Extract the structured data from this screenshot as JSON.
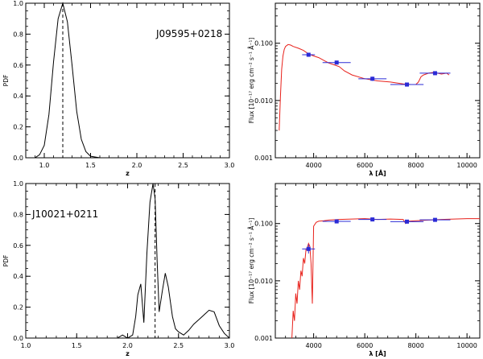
{
  "figure": {
    "panels": [
      {
        "id": "p1",
        "type": "line",
        "label": "J09595+0218",
        "xlabel": "z",
        "ylabel": "PDF",
        "xlim": [
          0.8,
          3.0
        ],
        "ylim": [
          0.0,
          1.0
        ],
        "xticks": [
          1.0,
          1.5,
          2.0,
          2.5,
          3.0
        ],
        "xtick_labels": [
          "1.0",
          "1.5",
          "2.0",
          "2.5",
          "3.0"
        ],
        "yticks": [
          0.0,
          0.2,
          0.4,
          0.6,
          0.8,
          1.0
        ],
        "ytick_labels": [
          "0.0",
          "0.2",
          "0.4",
          "0.6",
          "0.8",
          "1.0"
        ],
        "vline": 1.2,
        "x": [
          0.8,
          0.9,
          0.95,
          1.0,
          1.05,
          1.1,
          1.15,
          1.2,
          1.25,
          1.3,
          1.35,
          1.4,
          1.45,
          1.5,
          1.6,
          1.8,
          2.0,
          3.0
        ],
        "y": [
          0.0,
          0.0,
          0.02,
          0.08,
          0.28,
          0.62,
          0.9,
          1.0,
          0.88,
          0.6,
          0.3,
          0.12,
          0.04,
          0.01,
          0.0,
          0.0,
          0.0,
          0.0
        ]
      },
      {
        "id": "p2",
        "type": "sed",
        "xlabel": "λ [Å]",
        "ylabel": "Flux [10⁻¹⁷ erg cm⁻² s⁻¹ Å⁻¹]",
        "xlim": [
          2500,
          10500
        ],
        "ylim": [
          0.001,
          0.5
        ],
        "yscale": "log",
        "xticks": [
          4000,
          6000,
          8000,
          10000
        ],
        "xtick_labels": [
          "4000",
          "6000",
          "8000",
          "10000"
        ],
        "yticks": [
          0.001,
          0.01,
          0.1
        ],
        "ytick_labels": [
          "0.001",
          "0.010",
          "0.100"
        ],
        "curve_x": [
          2650,
          2700,
          2750,
          2800,
          2850,
          2900,
          3000,
          3100,
          3200,
          3400,
          3600,
          3800,
          4000,
          4200,
          4400,
          4600,
          4800,
          5000,
          5200,
          5500,
          6000,
          6500,
          7000,
          7500,
          7800,
          8000,
          8100,
          8200,
          8300,
          8500,
          8700,
          9000,
          9200,
          9300
        ],
        "curve_y": [
          0.003,
          0.012,
          0.035,
          0.06,
          0.078,
          0.088,
          0.095,
          0.093,
          0.088,
          0.082,
          0.075,
          0.065,
          0.06,
          0.056,
          0.05,
          0.045,
          0.042,
          0.039,
          0.033,
          0.028,
          0.024,
          0.022,
          0.021,
          0.0195,
          0.019,
          0.019,
          0.021,
          0.026,
          0.028,
          0.03,
          0.031,
          0.029,
          0.03,
          0.028
        ],
        "points": [
          {
            "x": 3800,
            "y": 0.063,
            "xerr": 250,
            "yerr_lo": 0.058,
            "yerr_hi": 0.068
          },
          {
            "x": 4900,
            "y": 0.046,
            "xerr": 550,
            "yerr_lo": 0.043,
            "yerr_hi": 0.049
          },
          {
            "x": 6300,
            "y": 0.024,
            "xerr": 550,
            "yerr_lo": 0.022,
            "yerr_hi": 0.026
          },
          {
            "x": 7650,
            "y": 0.019,
            "xerr": 650,
            "yerr_lo": 0.0175,
            "yerr_hi": 0.0205
          },
          {
            "x": 8750,
            "y": 0.03,
            "xerr": 600,
            "yerr_lo": 0.028,
            "yerr_hi": 0.032
          }
        ]
      },
      {
        "id": "p3",
        "type": "line",
        "label": "J10021+0211",
        "xlabel": "z",
        "ylabel": "PDF",
        "xlim": [
          1.0,
          3.0
        ],
        "ylim": [
          0.0,
          1.0
        ],
        "xticks": [
          1.0,
          1.5,
          2.0,
          2.5,
          3.0
        ],
        "xtick_labels": [
          "1.0",
          "1.5",
          "2.0",
          "2.5",
          "3.0"
        ],
        "yticks": [
          0.0,
          0.2,
          0.4,
          0.6,
          0.8,
          1.0
        ],
        "ytick_labels": [
          "0.0",
          "0.2",
          "0.4",
          "0.6",
          "0.8",
          "1.0"
        ],
        "vline": 2.27,
        "x": [
          1.0,
          1.9,
          1.95,
          2.0,
          2.05,
          2.08,
          2.1,
          2.13,
          2.16,
          2.19,
          2.22,
          2.25,
          2.27,
          2.29,
          2.31,
          2.34,
          2.37,
          2.4,
          2.44,
          2.47,
          2.5,
          2.55,
          2.6,
          2.65,
          2.7,
          2.75,
          2.8,
          2.85,
          2.9,
          2.95,
          3.0
        ],
        "y": [
          0.0,
          0.0,
          0.02,
          0.0,
          0.02,
          0.14,
          0.28,
          0.35,
          0.1,
          0.55,
          0.88,
          1.0,
          0.9,
          0.5,
          0.17,
          0.3,
          0.42,
          0.33,
          0.14,
          0.06,
          0.04,
          0.02,
          0.05,
          0.09,
          0.12,
          0.15,
          0.18,
          0.17,
          0.08,
          0.03,
          0.0
        ]
      },
      {
        "id": "p4",
        "type": "sed",
        "xlabel": "λ [Å]",
        "ylabel": "Flux [10⁻¹⁷ erg cm⁻² s⁻¹ Å⁻¹]",
        "xlim": [
          2500,
          10500
        ],
        "ylim": [
          0.001,
          0.5
        ],
        "yscale": "log",
        "xticks": [
          4000,
          6000,
          8000,
          10000
        ],
        "xtick_labels": [
          "4000",
          "6000",
          "8000",
          "10000"
        ],
        "yticks": [
          0.001,
          0.01,
          0.1
        ],
        "ytick_labels": [
          "0.001",
          "0.010",
          "0.100"
        ],
        "curve_x": [
          3150,
          3200,
          3250,
          3300,
          3350,
          3400,
          3450,
          3500,
          3550,
          3600,
          3650,
          3700,
          3750,
          3800,
          3850,
          3900,
          3950,
          4000,
          4100,
          4200,
          4400,
          4600,
          5000,
          5500,
          6000,
          6500,
          7000,
          7500,
          7600,
          7700,
          8000,
          8500,
          9000,
          9500,
          10000,
          10500
        ],
        "curve_y": [
          0.001,
          0.003,
          0.002,
          0.006,
          0.004,
          0.01,
          0.007,
          0.015,
          0.012,
          0.025,
          0.02,
          0.035,
          0.038,
          0.045,
          0.04,
          0.02,
          0.004,
          0.09,
          0.105,
          0.11,
          0.112,
          0.115,
          0.118,
          0.12,
          0.122,
          0.118,
          0.12,
          0.118,
          0.1,
          0.11,
          0.112,
          0.115,
          0.118,
          0.12,
          0.122,
          0.122
        ],
        "points": [
          {
            "x": 3800,
            "y": 0.036,
            "xerr": 250,
            "yerr_lo": 0.03,
            "yerr_hi": 0.043
          },
          {
            "x": 4900,
            "y": 0.109,
            "xerr": 550,
            "yerr_lo": 0.103,
            "yerr_hi": 0.115
          },
          {
            "x": 6300,
            "y": 0.118,
            "xerr": 550,
            "yerr_lo": 0.112,
            "yerr_hi": 0.124
          },
          {
            "x": 7650,
            "y": 0.108,
            "xerr": 650,
            "yerr_lo": 0.102,
            "yerr_hi": 0.114
          },
          {
            "x": 8750,
            "y": 0.116,
            "xerr": 600,
            "yerr_lo": 0.11,
            "yerr_hi": 0.122
          }
        ]
      }
    ],
    "colors": {
      "axis": "#000000",
      "pdf_line": "#000000",
      "model": "#e8221c",
      "photometry": "#2b2bd6"
    }
  },
  "chart_data": [
    {
      "type": "line",
      "title": "J09595+0218",
      "xlabel": "z",
      "ylabel": "PDF",
      "xlim": [
        0.8,
        3.0
      ],
      "ylim": [
        0,
        1
      ],
      "peak_z": 1.2
    },
    {
      "type": "line",
      "title": "",
      "xlabel": "λ [Å]",
      "ylabel": "Flux [10⁻¹⁷ erg cm⁻² s⁻¹ Å⁻¹]",
      "xlim": [
        2500,
        10500
      ],
      "ylim": [
        0.001,
        0.5
      ],
      "yscale": "log",
      "series": [
        {
          "name": "photometry",
          "x": [
            3800,
            4900,
            6300,
            7650,
            8750
          ],
          "y": [
            0.063,
            0.046,
            0.024,
            0.019,
            0.03
          ]
        }
      ]
    },
    {
      "type": "line",
      "title": "J10021+0211",
      "xlabel": "z",
      "ylabel": "PDF",
      "xlim": [
        1.0,
        3.0
      ],
      "ylim": [
        0,
        1
      ],
      "peak_z": 2.27
    },
    {
      "type": "line",
      "title": "",
      "xlabel": "λ [Å]",
      "ylabel": "Flux [10⁻¹⁷ erg cm⁻² s⁻¹ Å⁻¹]",
      "xlim": [
        2500,
        10500
      ],
      "ylim": [
        0.001,
        0.5
      ],
      "yscale": "log",
      "series": [
        {
          "name": "photometry",
          "x": [
            3800,
            4900,
            6300,
            7650,
            8750
          ],
          "y": [
            0.036,
            0.109,
            0.118,
            0.108,
            0.116
          ]
        }
      ]
    }
  ]
}
